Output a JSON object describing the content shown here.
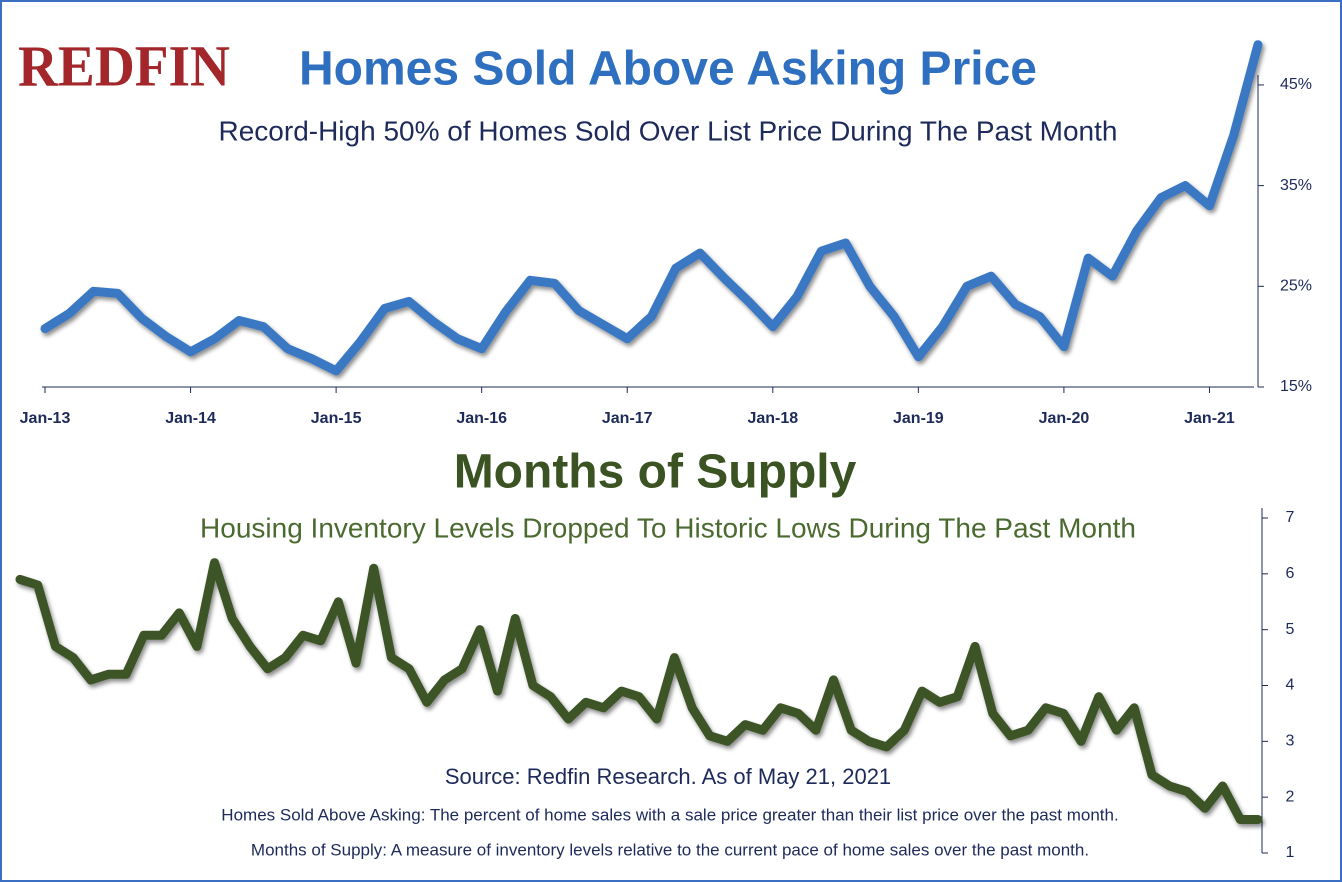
{
  "logo": "REDFIN",
  "chart_data": [
    {
      "type": "line",
      "title": "Homes Sold Above Asking Price",
      "subtitle": "Record-High 50% of Homes Sold Over List Price During The Past Month",
      "categories": [
        "Jan-13",
        null,
        null,
        null,
        null,
        null,
        "Jan-14",
        null,
        null,
        null,
        null,
        null,
        "Jan-15",
        null,
        null,
        null,
        null,
        null,
        "Jan-16",
        null,
        null,
        null,
        null,
        null,
        "Jan-17",
        null,
        null,
        null,
        null,
        null,
        "Jan-18",
        null,
        null,
        null,
        null,
        null,
        "Jan-19",
        null,
        null,
        null,
        null,
        null,
        "Jan-20",
        null,
        null,
        null,
        null,
        null,
        "Jan-21",
        null,
        null
      ],
      "values": [
        20.8,
        22.3,
        24.5,
        24.3,
        21.8,
        20.0,
        18.5,
        19.8,
        21.6,
        21.0,
        18.8,
        17.8,
        16.6,
        19.5,
        22.8,
        23.5,
        21.5,
        19.8,
        18.8,
        22.5,
        25.6,
        25.3,
        22.6,
        21.2,
        19.8,
        22.0,
        26.8,
        28.3,
        25.8,
        23.5,
        21.0,
        24.0,
        28.5,
        29.3,
        25.0,
        22.0,
        18.0,
        21.0,
        25.0,
        26.0,
        23.2,
        22.0,
        19.0,
        27.8,
        26.0,
        30.5,
        33.8,
        35.0,
        33.0,
        40.0,
        49.0
      ],
      "color": "#3a78c4",
      "ylim": [
        15,
        50
      ],
      "yticks": [
        {
          "value": 15,
          "label": "15%"
        },
        {
          "value": 25,
          "label": "25%"
        },
        {
          "value": 35,
          "label": "35%"
        },
        {
          "value": 45,
          "label": "45%"
        }
      ],
      "grid": false
    },
    {
      "type": "line",
      "title": "Months of Supply",
      "subtitle": "Housing Inventory Levels Dropped To Historic Lows During The Past Month",
      "categories": [
        null,
        null,
        null,
        null,
        null,
        null,
        null,
        null,
        null,
        null,
        null,
        null,
        null,
        null,
        null,
        null,
        null,
        null,
        null,
        null,
        null,
        null,
        null,
        null,
        null,
        null,
        null,
        null,
        null,
        null,
        null,
        null,
        null,
        null,
        null,
        null,
        null,
        null,
        null,
        null,
        null,
        null,
        null,
        null,
        null,
        null,
        null,
        null,
        null,
        null,
        null,
        null,
        null,
        null,
        null,
        null,
        null,
        null,
        null,
        null,
        null,
        null,
        null,
        null,
        null,
        null,
        null,
        null,
        null,
        null,
        null
      ],
      "values": [
        5.9,
        5.8,
        4.7,
        4.5,
        4.1,
        4.2,
        4.2,
        4.9,
        4.9,
        5.3,
        4.7,
        6.2,
        5.2,
        4.7,
        4.3,
        4.5,
        4.9,
        4.8,
        5.5,
        4.4,
        6.1,
        4.5,
        4.3,
        3.7,
        4.1,
        4.3,
        5.0,
        3.9,
        5.2,
        4.0,
        3.8,
        3.4,
        3.7,
        3.6,
        3.9,
        3.8,
        3.4,
        4.5,
        3.6,
        3.1,
        3.0,
        3.3,
        3.2,
        3.6,
        3.5,
        3.2,
        4.1,
        3.2,
        3.0,
        2.9,
        3.2,
        3.9,
        3.7,
        3.8,
        4.7,
        3.5,
        3.1,
        3.2,
        3.6,
        3.5,
        3.0,
        3.8,
        3.2,
        3.6,
        2.4,
        2.2,
        2.1,
        1.8,
        2.2,
        1.6,
        1.6
      ],
      "color": "#3e5427",
      "ylim": [
        1,
        7
      ],
      "yticks": [
        1,
        2,
        3,
        4,
        5,
        6,
        7
      ],
      "grid": false
    }
  ],
  "footer": {
    "source": "Source: Redfin Research. As of May 21, 2021",
    "notes": [
      "Homes Sold Above Asking: The percent of home sales with a sale price greater than their list price over the past month.",
      "Months of Supply: A measure of inventory levels relative to the current pace of home sales over the past month."
    ]
  }
}
